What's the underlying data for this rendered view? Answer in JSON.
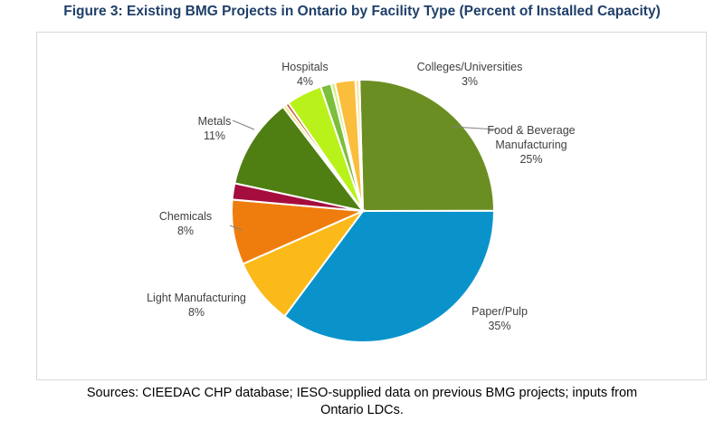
{
  "title": "Figure 3: Existing BMG Projects in Ontario by Facility Type (Percent of Installed Capacity)",
  "sources": {
    "line1": "Sources:  CIEEDAC CHP database; IESO-supplied data on previous BMG projects; inputs from",
    "line2": "Ontario LDCs."
  },
  "chart_data": {
    "type": "pie",
    "title": "Figure 3: Existing BMG Projects in Ontario by Facility Type (Percent of Installed Capacity)",
    "unit": "percent",
    "slices": [
      {
        "name": "Food & Beverage Manufacturing",
        "label_lines": [
          "Food & Beverage",
          "Manufacturing"
        ],
        "value_label": "25%",
        "value": 25.4,
        "color": "#6b8e23",
        "labeled": true
      },
      {
        "name": "Paper/Pulp",
        "label_lines": [
          "Paper/Pulp"
        ],
        "value_label": "35%",
        "value": 35.2,
        "color": "#0a93cb",
        "labeled": true
      },
      {
        "name": "Light Manufacturing",
        "label_lines": [
          "Light Manufacturing"
        ],
        "value_label": "8%",
        "value": 8.2,
        "color": "#fbb91a",
        "labeled": true
      },
      {
        "name": "Chemicals",
        "label_lines": [
          "Chemicals"
        ],
        "value_label": "8%",
        "value": 8.0,
        "color": "#ef7d0d",
        "labeled": true
      },
      {
        "name": "",
        "value": 2.0,
        "color": "#a50d3e",
        "labeled": false
      },
      {
        "name": "Metals",
        "label_lines": [
          "Metals"
        ],
        "value_label": "11%",
        "value": 11.2,
        "color": "#4f7f13",
        "labeled": true
      },
      {
        "name": "",
        "value": 0.4,
        "color": "#f0e36a",
        "labeled": false
      },
      {
        "name": "",
        "value": 0.4,
        "color": "#c04f1a",
        "labeled": false
      },
      {
        "name": "Hospitals",
        "label_lines": [
          "Hospitals"
        ],
        "value_label": "4%",
        "value": 4.4,
        "color": "#b9f21a",
        "labeled": true
      },
      {
        "name": "",
        "value": 1.3,
        "color": "#7cbf3a",
        "labeled": false
      },
      {
        "name": "",
        "value": 0.5,
        "color": "#d5ef80",
        "labeled": false
      },
      {
        "name": "Colleges/Universities",
        "label_lines": [
          "Colleges/Universities"
        ],
        "value_label": "3%",
        "value": 2.5,
        "color": "#fbbd3c",
        "labeled": true
      },
      {
        "name": "",
        "value": 0.5,
        "color": "#fde4a6",
        "labeled": false
      }
    ]
  }
}
